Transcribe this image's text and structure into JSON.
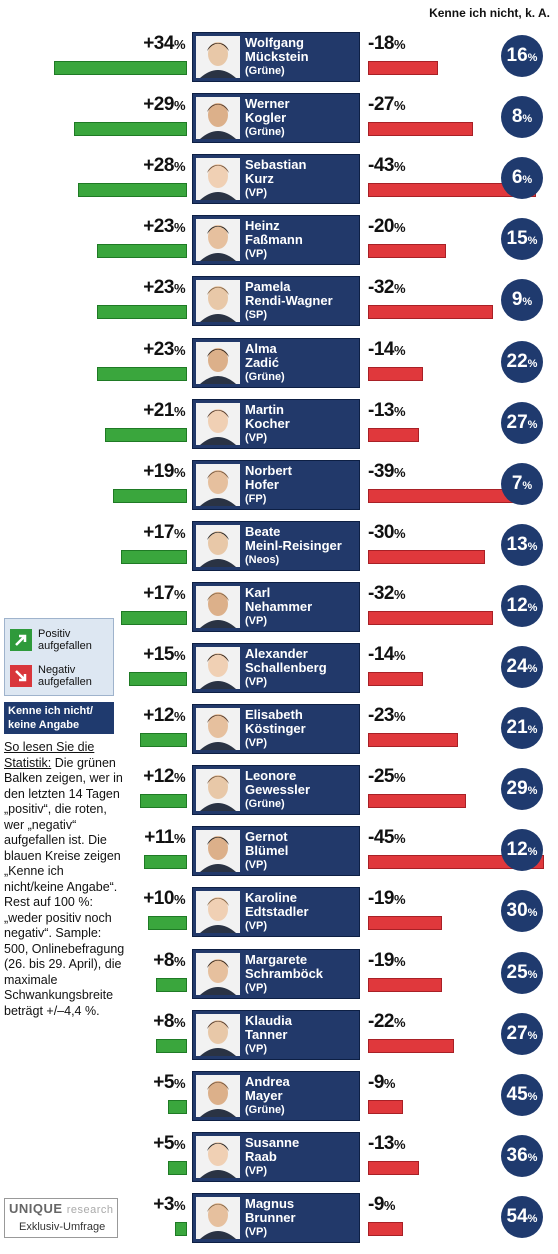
{
  "header": "Kenne ich nicht, k. A.",
  "legend": {
    "positive": "Positiv aufgefallen",
    "negative": "Negativ aufgefallen",
    "unknown": "Kenne ich nicht/ keine Angabe"
  },
  "howto": {
    "title": "So lesen Sie die Statistik:",
    "text": "Die grünen Balken zeigen, wer in den letzten 14 Tagen „positiv“, die roten, wer „negativ“ aufgefallen ist. Die blauen Kreise zeigen „Kenne ich nicht/keine Angabe“. Rest auf 100 %: „weder positiv noch negativ“. Sample: 500, Onlinebefragung (26. bis 29. April), die maximale Schwankungsbreite beträgt +/–4,4 %."
  },
  "source": {
    "brand": "UNIQUE",
    "brand_suffix": "research",
    "note": "Exklusiv-Umfrage"
  },
  "colors": {
    "positive": "#3aa63d",
    "negative": "#e0383c",
    "navy": "#22396a"
  },
  "chart_data": {
    "type": "bar",
    "categories": [
      "Wolfgang Mückstein",
      "Werner Kogler",
      "Sebastian Kurz",
      "Heinz Faßmann",
      "Pamela Rendi-Wagner",
      "Alma Zadić",
      "Martin Kocher",
      "Norbert Hofer",
      "Beate Meinl-Reisinger",
      "Karl Nehammer",
      "Alexander Schallenberg",
      "Elisabeth Köstinger",
      "Leonore Gewessler",
      "Gernot Blümel",
      "Karoline Edtstadler",
      "Margarete Schramböck",
      "Klaudia Tanner",
      "Andrea Mayer",
      "Susanne Raab",
      "Magnus Brunner"
    ],
    "series": [
      {
        "name": "Positiv aufgefallen",
        "values": [
          34,
          29,
          28,
          23,
          23,
          23,
          21,
          19,
          17,
          17,
          15,
          12,
          12,
          11,
          10,
          8,
          8,
          5,
          5,
          3
        ]
      },
      {
        "name": "Negativ aufgefallen",
        "values": [
          18,
          27,
          43,
          20,
          32,
          14,
          13,
          39,
          30,
          32,
          14,
          23,
          25,
          45,
          19,
          19,
          22,
          9,
          13,
          9
        ]
      },
      {
        "name": "Kenne ich nicht/ keine Angabe",
        "values": [
          16,
          8,
          6,
          15,
          9,
          22,
          27,
          7,
          13,
          12,
          24,
          21,
          29,
          12,
          30,
          25,
          27,
          45,
          36,
          54
        ]
      }
    ],
    "people": [
      {
        "first": "Wolfgang",
        "last": "Mückstein",
        "party": "(Grüne)",
        "pos": "+34",
        "neg": "-18",
        "unknown": "16"
      },
      {
        "first": "Werner",
        "last": "Kogler",
        "party": "(Grüne)",
        "pos": "+29",
        "neg": "-27",
        "unknown": "8"
      },
      {
        "first": "Sebastian",
        "last": "Kurz",
        "party": "(VP)",
        "pos": "+28",
        "neg": "-43",
        "unknown": "6"
      },
      {
        "first": "Heinz",
        "last": "Faßmann",
        "party": "(VP)",
        "pos": "+23",
        "neg": "-20",
        "unknown": "15"
      },
      {
        "first": "Pamela",
        "last": "Rendi-Wagner",
        "party": "(SP)",
        "pos": "+23",
        "neg": "-32",
        "unknown": "9"
      },
      {
        "first": "Alma",
        "last": "Zadić",
        "party": "(Grüne)",
        "pos": "+23",
        "neg": "-14",
        "unknown": "22"
      },
      {
        "first": "Martin",
        "last": "Kocher",
        "party": "(VP)",
        "pos": "+21",
        "neg": "-13",
        "unknown": "27"
      },
      {
        "first": "Norbert",
        "last": "Hofer",
        "party": "(FP)",
        "pos": "+19",
        "neg": "-39",
        "unknown": "7"
      },
      {
        "first": "Beate",
        "last": "Meinl-Reisinger",
        "party": "(Neos)",
        "pos": "+17",
        "neg": "-30",
        "unknown": "13"
      },
      {
        "first": "Karl",
        "last": "Nehammer",
        "party": "(VP)",
        "pos": "+17",
        "neg": "-32",
        "unknown": "12"
      },
      {
        "first": "Alexander",
        "last": "Schallenberg",
        "party": "(VP)",
        "pos": "+15",
        "neg": "-14",
        "unknown": "24"
      },
      {
        "first": "Elisabeth",
        "last": "Köstinger",
        "party": "(VP)",
        "pos": "+12",
        "neg": "-23",
        "unknown": "21"
      },
      {
        "first": "Leonore",
        "last": "Gewessler",
        "party": "(Grüne)",
        "pos": "+12",
        "neg": "-25",
        "unknown": "29"
      },
      {
        "first": "Gernot",
        "last": "Blümel",
        "party": "(VP)",
        "pos": "+11",
        "neg": "-45",
        "unknown": "12"
      },
      {
        "first": "Karoline",
        "last": "Edtstadler",
        "party": "(VP)",
        "pos": "+10",
        "neg": "-19",
        "unknown": "30"
      },
      {
        "first": "Margarete",
        "last": "Schramböck",
        "party": "(VP)",
        "pos": "+8",
        "neg": "-19",
        "unknown": "25"
      },
      {
        "first": "Klaudia",
        "last": "Tanner",
        "party": "(VP)",
        "pos": "+8",
        "neg": "-22",
        "unknown": "27"
      },
      {
        "first": "Andrea",
        "last": "Mayer",
        "party": "(Grüne)",
        "pos": "+5",
        "neg": "-9",
        "unknown": "45"
      },
      {
        "first": "Susanne",
        "last": "Raab",
        "party": "(VP)",
        "pos": "+5",
        "neg": "-13",
        "unknown": "36"
      },
      {
        "first": "Magnus",
        "last": "Brunner",
        "party": "(VP)",
        "pos": "+3",
        "neg": "-9",
        "unknown": "54"
      }
    ],
    "pct_sign": "%"
  }
}
